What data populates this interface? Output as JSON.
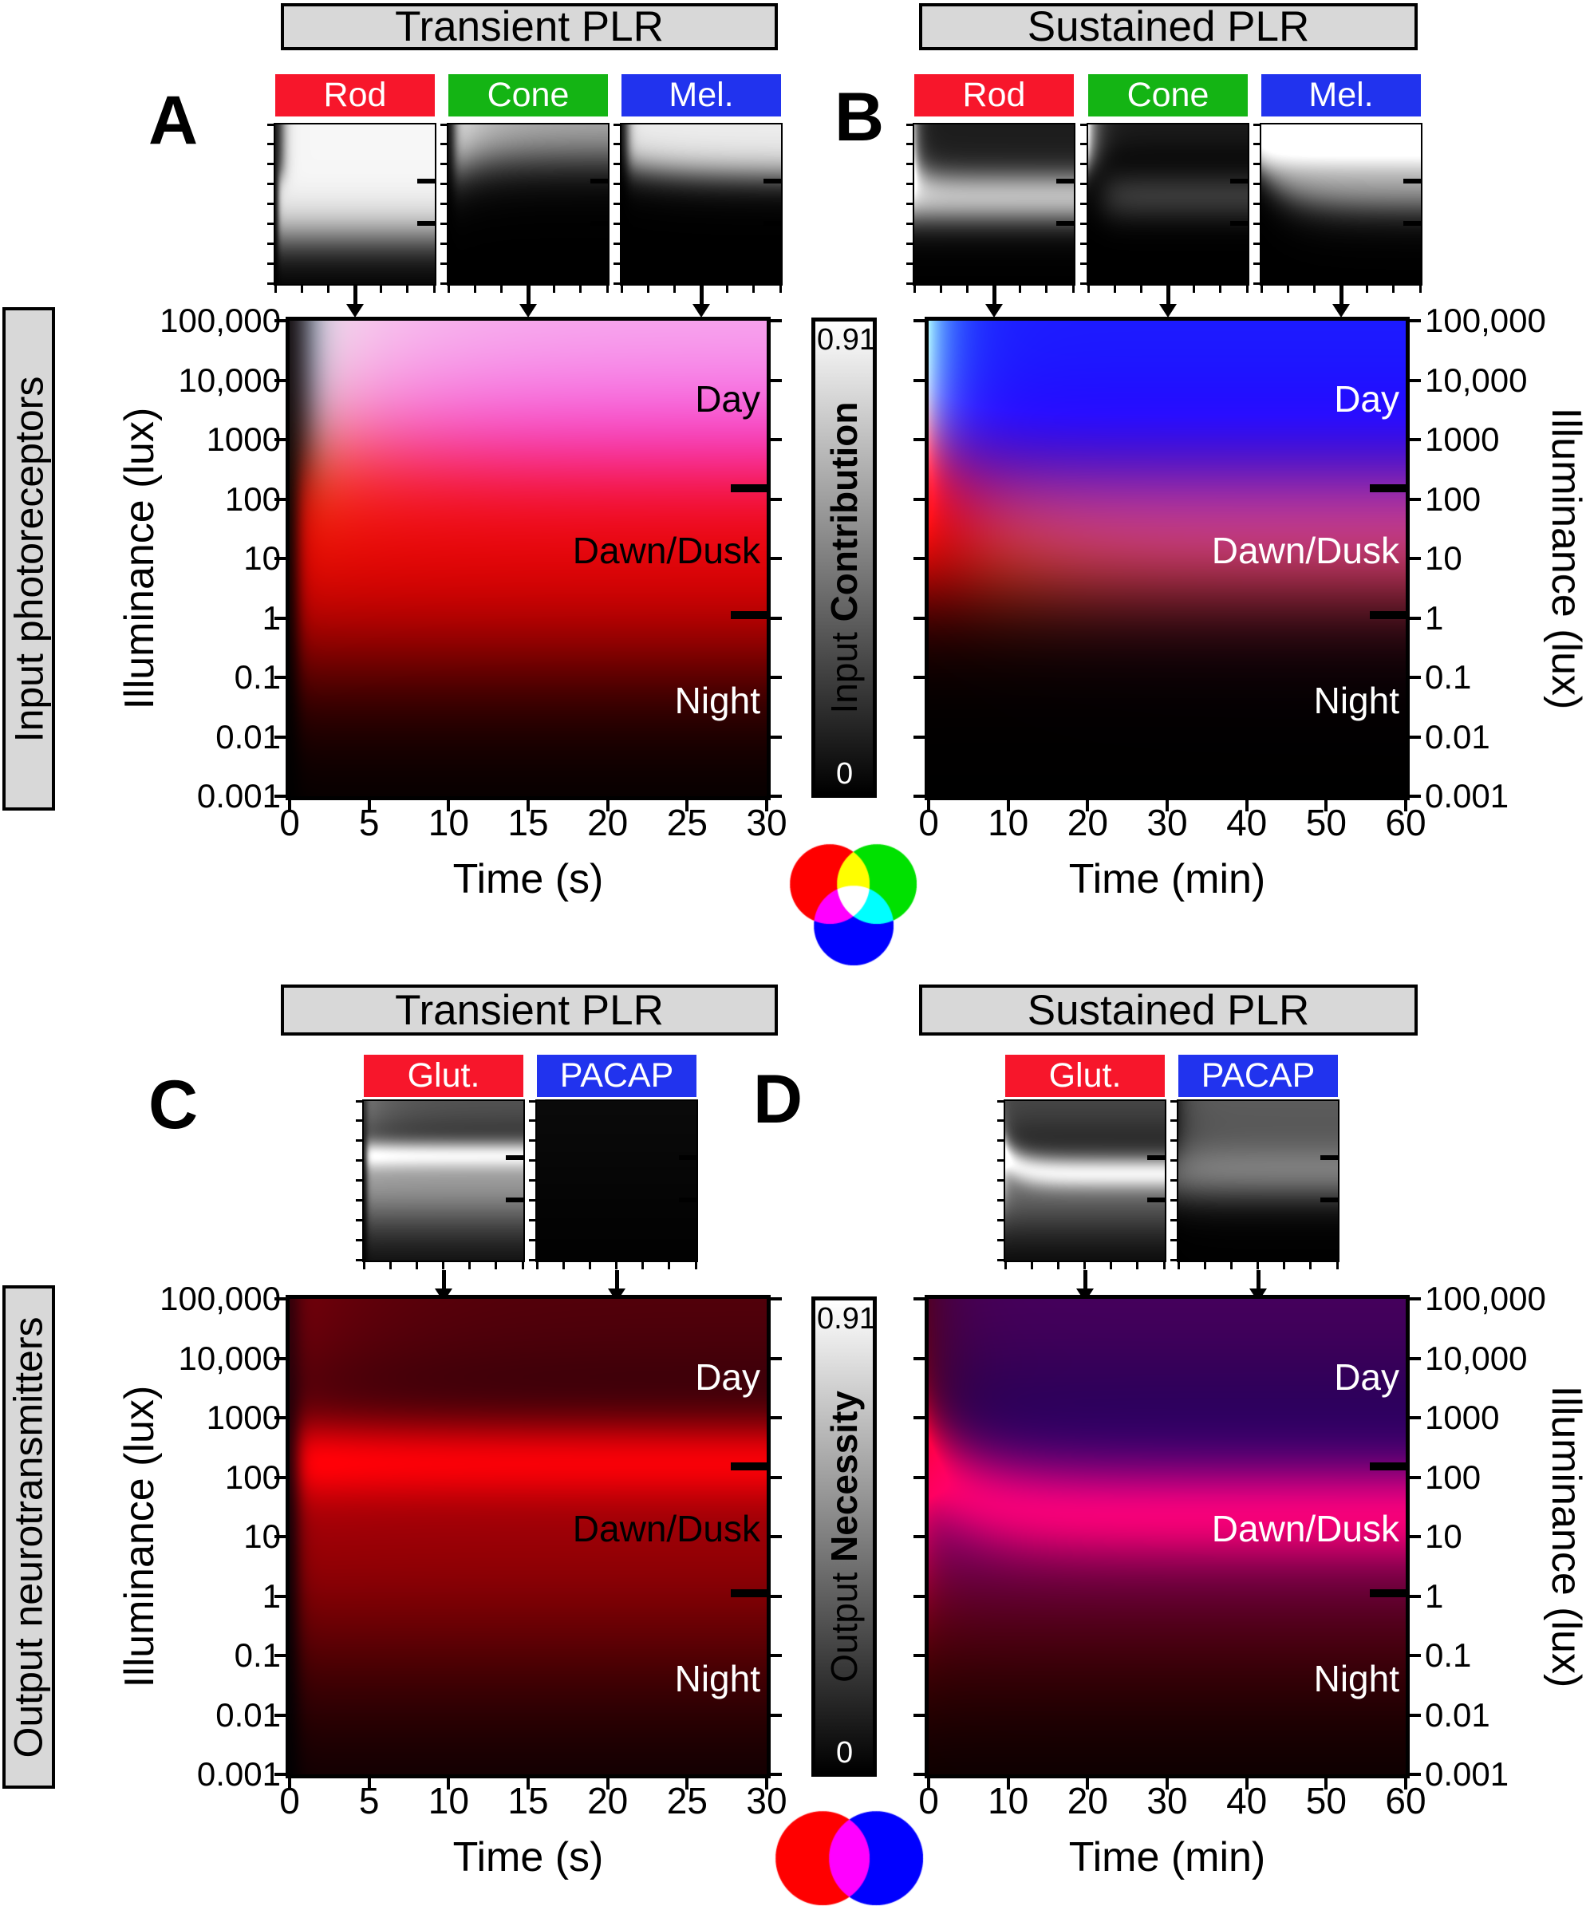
{
  "figure_background": "#ffffff",
  "headers": {
    "transient": "Transient PLR",
    "sustained": "Sustained PLR"
  },
  "panel_letters": {
    "A": "A",
    "B": "B",
    "C": "C",
    "D": "D"
  },
  "row_labels": {
    "input": "Input photoreceptors",
    "output": "Output neurotransmitters"
  },
  "colors": {
    "header_fill": "#d8d8d8",
    "rod_red": "#f7162b",
    "cone_green": "#14b414",
    "mel_blue": "#2133ee",
    "glut_red": "#f7162b",
    "pacap_blue": "#2133ee",
    "venn_red": "#ff0000",
    "venn_green": "#00d800",
    "venn_blue": "#0000ff",
    "venn_rb_red": "#ff0000",
    "venn_rb_blue": "#0000ff"
  },
  "y_axis": {
    "label": "Illuminance (lux)",
    "tick_labels": [
      "100,000",
      "10,000",
      "1000",
      "100",
      "10",
      "1",
      "0.1",
      "0.01",
      "0.001"
    ],
    "log10_range": [
      5,
      -3
    ]
  },
  "x_axis_seconds": {
    "label": "Time (s)",
    "tick_labels": [
      "0",
      "5",
      "10",
      "15",
      "20",
      "25",
      "30"
    ],
    "range": [
      0,
      30
    ]
  },
  "x_axis_minutes": {
    "label": "Time (min)",
    "tick_labels": [
      "0",
      "10",
      "20",
      "30",
      "40",
      "50",
      "60"
    ],
    "range": [
      0,
      60
    ]
  },
  "zone_labels": {
    "day": "Day",
    "dawn_dusk": "Dawn/Dusk",
    "night": "Night",
    "log10_positions": {
      "day": 3.7,
      "dawn_dusk": 1.15,
      "night": -1.38
    },
    "boundary_marks_log10": [
      2.176,
      0.041
    ],
    "text_colors": {
      "A": {
        "day": "#000000",
        "dawn_dusk": "#000000",
        "night": "#ffffff"
      },
      "B": {
        "day": "#ffffff",
        "dawn_dusk": "#ffffff",
        "night": "#ffffff"
      },
      "C": {
        "day": "#ffffff",
        "dawn_dusk": "#000000",
        "night": "#ffffff"
      },
      "D": {
        "day": "#ffffff",
        "dawn_dusk": "#ffffff",
        "night": "#ffffff"
      }
    }
  },
  "colorbars": {
    "input": {
      "max": "0.91",
      "min": "0",
      "label_regular": "Input ",
      "label_bold": "Contribution"
    },
    "output": {
      "max": "0.91",
      "min": "0",
      "label_regular": "Output ",
      "label_bold": "Necessity"
    }
  },
  "chart_data": {
    "type": "heatmap",
    "description": "Composite RGB heatmaps of modeled input photoreceptor contributions (A transient, B sustained) and output neurotransmitter necessities (C transient, D sustained) to the pupillary light reflex as a function of time and illuminance. Each small grayscale map is one channel (value range 0 to 0.91); the large map is the RGB composite.",
    "value_range": [
      0,
      0.91
    ],
    "y_log10_range": [
      5,
      -3
    ],
    "panels": [
      {
        "id": "A",
        "header": "Transient PLR",
        "time_max": 30,
        "time_unit": "s",
        "maps": [
          {
            "name": "Rod",
            "channel": "r",
            "box_color": "rod_red",
            "model": [
              {
                "a": 0.88,
                "f": [
                  {
                    "t": "sigU",
                    "c": -0.65,
                    "w": 0.7
                  },
                  {
                    "t": "sigD",
                    "c": 2.4,
                    "w": 0.35
                  },
                  {
                    "t": "onset",
                    "t0": 0.5,
                    "w": 0.28
                  }
                ]
              },
              {
                "a": 0.88,
                "f": [
                  {
                    "t": "sigU",
                    "c": 2.4,
                    "w": 0.35
                  },
                  {
                    "t": "onset",
                    "t0": 1.3,
                    "w": 0.65
                  }
                ]
              }
            ]
          },
          {
            "name": "Cone",
            "channel": "g",
            "box_color": "cone_green",
            "model": [
              {
                "a": 0.9,
                "f": [
                  {
                    "t": "sigU",
                    "c": 2.55,
                    "w": 0.7,
                    "d": 0.85,
                    "tau": 5
                  },
                  {
                    "t": "decay",
                    "base": 0.7,
                    "scale": 0.3,
                    "tau": 6
                  },
                  {
                    "t": "onset",
                    "t0": 1.2,
                    "w": 0.55
                  }
                ]
              }
            ]
          },
          {
            "name": "Mel.",
            "channel": "b",
            "box_color": "mel_blue",
            "model": [
              {
                "a": 0.85,
                "f": [
                  {
                    "t": "sigU",
                    "c": 3.0,
                    "w": 0.5,
                    "d": -0.55,
                    "tau": 9
                  },
                  {
                    "t": "onset",
                    "t0": 1.1,
                    "w": 0.55
                  }
                ]
              }
            ]
          }
        ]
      },
      {
        "id": "B",
        "header": "Sustained PLR",
        "time_max": 60,
        "time_unit": "min",
        "maps": [
          {
            "name": "Rod",
            "channel": "r",
            "box_color": "rod_red",
            "model": [
              {
                "a": 0.9,
                "f": [
                  {
                    "t": "sigU",
                    "c": 0.45,
                    "w": 0.5
                  },
                  {
                    "t": "sigD",
                    "c": 2.85,
                    "w": 0.5,
                    "d": -0.55,
                    "tau": 5
                  }
                ]
              },
              {
                "a": 0.5,
                "f": [
                  {
                    "t": "sigU",
                    "c": 2.0,
                    "w": 0.5
                  },
                  {
                    "t": "decay",
                    "base": 0,
                    "scale": 1,
                    "tau": 2.0
                  }
                ]
              },
              {
                "a": 0.1,
                "f": [
                  {
                    "t": "sigU",
                    "c": 3.2,
                    "w": 0.5
                  }
                ]
              }
            ]
          },
          {
            "name": "Cone",
            "channel": "g",
            "box_color": "cone_green",
            "model": [
              {
                "a": 0.78,
                "f": [
                  {
                    "t": "sigU",
                    "c": 3.0,
                    "w": 0.45
                  },
                  {
                    "t": "decay",
                    "base": 0,
                    "scale": 1,
                    "tau": 3.0
                  }
                ]
              },
              {
                "a": 0.1,
                "f": [
                  {
                    "t": "sigU",
                    "c": 3.8,
                    "w": 0.45
                  }
                ]
              },
              {
                "a": 0.2,
                "f": [
                  {
                    "t": "gauss",
                    "c": 1.4,
                    "w": 0.9
                  },
                  {
                    "t": "onset",
                    "t0": 6,
                    "w": 3
                  }
                ]
              }
            ]
          },
          {
            "name": "Mel.",
            "channel": "b",
            "box_color": "mel_blue",
            "model": [
              {
                "a": 0.36,
                "f": [
                  {
                    "t": "sigU",
                    "c": 3.0,
                    "w": 0.35
                  }
                ]
              },
              {
                "a": 0.64,
                "f": [
                  {
                    "t": "sigU",
                    "c": 2.75,
                    "w": 0.55,
                    "d": -1.85,
                    "tau": 10
                  }
                ]
              }
            ]
          }
        ]
      },
      {
        "id": "C",
        "header": "Transient PLR",
        "time_max": 30,
        "time_unit": "s",
        "maps": [
          {
            "name": "Glut.",
            "channel": "r",
            "box_color": "glut_red",
            "model": [
              {
                "a": 0.3,
                "f": [
                  {
                    "t": "sigU",
                    "c": 3.5,
                    "w": 0.5
                  },
                  {
                    "t": "onset",
                    "t0": 0.5,
                    "w": 0.3
                  }
                ]
              },
              {
                "a": 0.55,
                "f": [
                  {
                    "t": "gauss",
                    "c": 2.35,
                    "w": 0.5
                  },
                  {
                    "t": "onset",
                    "t0": 0.5,
                    "w": 0.3
                  }
                ]
              },
              {
                "a": 0.72,
                "f": [
                  {
                    "t": "sigU",
                    "c": -0.6,
                    "w": 1.1
                  },
                  {
                    "t": "sigD",
                    "c": 2.2,
                    "w": 0.5
                  },
                  {
                    "t": "onset",
                    "t0": 0.5,
                    "w": 0.3
                  }
                ]
              },
              {
                "a": 0.15,
                "f": [
                  {
                    "t": "sigU",
                    "c": 2.6,
                    "w": 0.8
                  },
                  {
                    "t": "decay",
                    "base": 0,
                    "scale": 1,
                    "tau": 5
                  }
                ]
              }
            ]
          },
          {
            "name": "PACAP",
            "channel": "b",
            "box_color": "pacap_blue",
            "model": [
              {
                "a": 0.045,
                "f": [
                  {
                    "t": "sigU",
                    "c": 1.5,
                    "w": 2.5
                  }
                ]
              }
            ]
          }
        ]
      },
      {
        "id": "D",
        "header": "Sustained PLR",
        "time_max": 60,
        "time_unit": "min",
        "maps": [
          {
            "name": "Glut.",
            "channel": "r",
            "box_color": "glut_red",
            "model": [
              {
                "a": 0.26,
                "f": [
                  {
                    "t": "sigU",
                    "c": 3.6,
                    "w": 0.6
                  }
                ]
              },
              {
                "a": 0.56,
                "f": [
                  {
                    "t": "gauss",
                    "c": 2.25,
                    "w": 0.58,
                    "d": -0.85,
                    "tau": 6
                  }
                ]
              },
              {
                "a": 0.52,
                "f": [
                  {
                    "t": "sigU",
                    "c": -0.8,
                    "w": 1.0
                  },
                  {
                    "t": "sigD",
                    "c": 1.85,
                    "w": 0.75
                  }
                ]
              },
              {
                "a": 0.42,
                "f": [
                  {
                    "t": "sigU",
                    "c": 0.6,
                    "w": 0.7
                  },
                  {
                    "t": "sigD",
                    "c": 3.3,
                    "w": 0.8
                  },
                  {
                    "t": "decay",
                    "base": 0,
                    "scale": 1,
                    "tau": 2.2
                  }
                ]
              }
            ]
          },
          {
            "name": "PACAP",
            "channel": "b",
            "box_color": "pacap_blue",
            "model": [
              {
                "a": 0.34,
                "f": [
                  {
                    "t": "sigU",
                    "c": 2.3,
                    "w": 1.0,
                    "d": -0.5,
                    "tau": 8
                  },
                  {
                    "t": "decay",
                    "base": 1,
                    "scale": -0.55,
                    "tau": 3.5
                  }
                ]
              },
              {
                "a": 0.3,
                "f": [
                  {
                    "t": "gauss",
                    "c": 1.35,
                    "w": 1.05
                  }
                ]
              }
            ]
          }
        ]
      }
    ]
  }
}
